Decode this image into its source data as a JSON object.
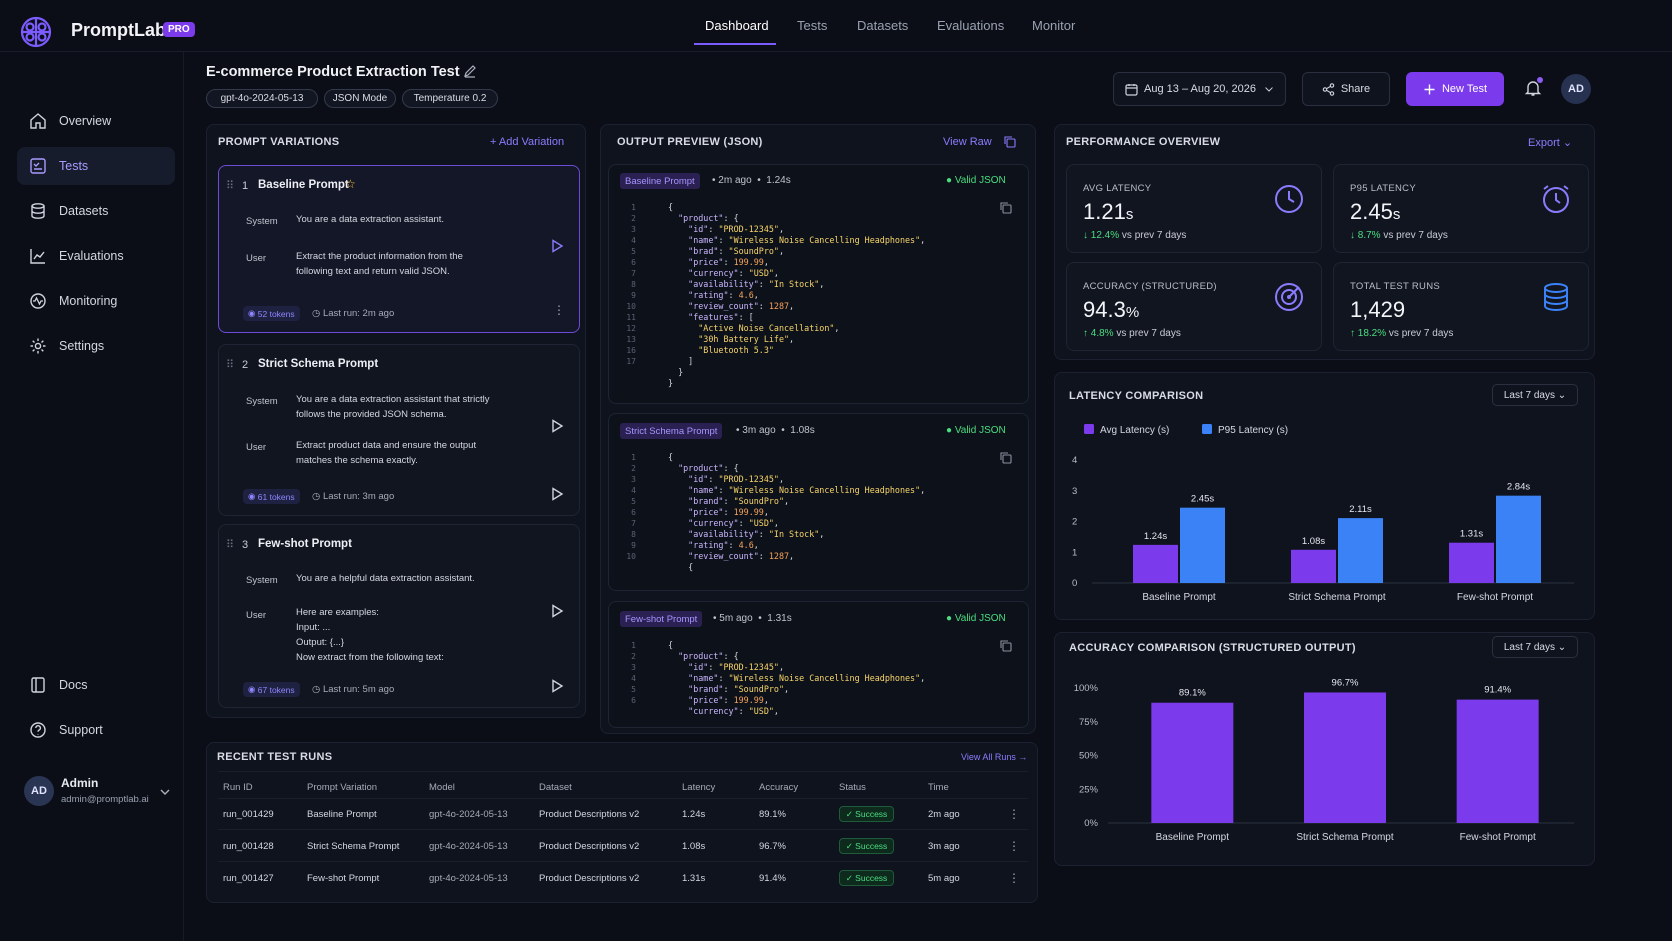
{
  "app": {
    "name": "PromptLab",
    "badge": "PRO"
  },
  "nav": {
    "tabs": [
      "Dashboard",
      "Tests",
      "Datasets",
      "Evaluations",
      "Monitor"
    ],
    "active": "Dashboard"
  },
  "sidebar": {
    "items": [
      {
        "label": "Overview",
        "icon": "home-icon"
      },
      {
        "label": "Tests",
        "icon": "tests-icon",
        "active": true
      },
      {
        "label": "Datasets",
        "icon": "database-icon"
      },
      {
        "label": "Evaluations",
        "icon": "chart-icon"
      },
      {
        "label": "Monitoring",
        "icon": "monitor-icon"
      },
      {
        "label": "Settings",
        "icon": "gear-icon"
      }
    ],
    "bottom": [
      {
        "label": "Docs",
        "icon": "book-icon"
      },
      {
        "label": "Support",
        "icon": "help-icon"
      }
    ],
    "user": {
      "initials": "AD",
      "name": "Admin",
      "email": "admin@promptlab.ai"
    }
  },
  "header": {
    "title": "E-commerce Product Extraction Test",
    "chips": [
      "gpt-4o-2024-05-13",
      "JSON Mode",
      "Temperature 0.2"
    ],
    "date_range": "Aug 13 – Aug 20, 2026",
    "share": "Share",
    "new_test": "New Test",
    "avatar": "AD"
  },
  "prompts": {
    "title": "PROMPT VARIATIONS",
    "add": "Add Variation",
    "items": [
      {
        "num": "1",
        "name": "Baseline Prompt",
        "system": "You are a data extraction assistant.",
        "user": [
          "Extract the product information from the",
          "following text and return valid JSON."
        ],
        "tokens": "52 tokens",
        "last_run": "Last run: 2m ago"
      },
      {
        "num": "2",
        "name": "Strict Schema Prompt",
        "system": [
          "You are a data extraction assistant that strictly",
          "follows the provided JSON schema."
        ],
        "user": [
          "Extract product data and ensure the output",
          "matches the schema exactly."
        ],
        "tokens": "61 tokens",
        "last_run": "Last run: 3m ago"
      },
      {
        "num": "3",
        "name": "Few-shot Prompt",
        "system": "You are a helpful data extraction assistant.",
        "user": [
          "Here are examples:",
          "Input: ...",
          "Output: {...}",
          "Now extract from the following text:"
        ],
        "tokens": "67 tokens",
        "last_run": "Last run: 5m ago"
      }
    ],
    "system_label": "System",
    "user_label": "User"
  },
  "output": {
    "title": "OUTPUT PREVIEW (JSON)",
    "view_raw": "View Raw",
    "valid": "Valid JSON",
    "blocks": [
      {
        "tag": "Baseline Prompt",
        "ago": "2m ago",
        "time": "1.24s"
      },
      {
        "tag": "Strict Schema Prompt",
        "ago": "3m ago",
        "time": "1.08s"
      },
      {
        "tag": "Few-shot Prompt",
        "ago": "5m ago",
        "time": "1.31s"
      }
    ]
  },
  "performance": {
    "title": "PERFORMANCE OVERVIEW",
    "export": "Export",
    "metrics": [
      {
        "label": "AVG LATENCY",
        "value": "1.21",
        "unit": "s",
        "delta": "12.4%",
        "dir": "↓",
        "suffix": "vs prev 7 days"
      },
      {
        "label": "P95 LATENCY",
        "value": "2.45",
        "unit": "s",
        "delta": "8.7%",
        "dir": "↓",
        "suffix": "vs prev 7 days"
      },
      {
        "label": "ACCURACY (STRUCTURED)",
        "value": "94.3",
        "unit": "%",
        "delta": "4.8%",
        "dir": "↑",
        "suffix": "vs prev 7 days"
      },
      {
        "label": "TOTAL TEST RUNS",
        "value": "1,429",
        "unit": "",
        "delta": "18.2%",
        "dir": "↑",
        "suffix": "vs prev 7 days"
      }
    ]
  },
  "latency_chart": {
    "title": "LATENCY COMPARISON",
    "range": "Last 7 days"
  },
  "accuracy_chart": {
    "title": "ACCURACY COMPARISON (STRUCTURED OUTPUT)",
    "range": "Last 7 days"
  },
  "chart_data": [
    {
      "type": "bar",
      "title": "LATENCY COMPARISON",
      "categories": [
        "Baseline Prompt",
        "Strict Schema Prompt",
        "Few-shot Prompt"
      ],
      "series": [
        {
          "name": "Avg Latency (s)",
          "values": [
            1.24,
            1.08,
            1.31
          ],
          "labels": [
            "1.24s",
            "1.08s",
            "1.31s"
          ],
          "color": "#7c3aed"
        },
        {
          "name": "P95 Latency (s)",
          "values": [
            2.45,
            2.11,
            2.84
          ],
          "labels": [
            "2.45s",
            "2.11s",
            "2.84s"
          ],
          "color": "#3b82f6"
        }
      ],
      "ylim": [
        0,
        4
      ],
      "yticks": [
        "0",
        "1",
        "2",
        "3",
        "4"
      ],
      "legend": "top-left"
    },
    {
      "type": "bar",
      "title": "ACCURACY COMPARISON (STRUCTURED OUTPUT)",
      "categories": [
        "Baseline Prompt",
        "Strict Schema Prompt",
        "Few-shot Prompt"
      ],
      "series": [
        {
          "values": [
            89.1,
            96.7,
            91.4
          ],
          "labels": [
            "89.1%",
            "96.7%",
            "91.4%"
          ],
          "color": "#7c3aed"
        }
      ],
      "ylim": [
        0,
        100
      ],
      "yticks": [
        "0%",
        "25%",
        "50%",
        "75%",
        "100%"
      ]
    }
  ],
  "runs": {
    "title": "RECENT TEST RUNS",
    "view_all": "View All Runs →",
    "columns": [
      "Run ID",
      "Prompt Variation",
      "Model",
      "Dataset",
      "Latency",
      "Accuracy",
      "Status",
      "Time"
    ],
    "rows": [
      [
        "run_001429",
        "Baseline Prompt",
        "gpt-4o-2024-05-13",
        "Product Descriptions v2",
        "1.24s",
        "89.1%",
        "Success",
        "2m ago"
      ],
      [
        "run_001428",
        "Strict Schema Prompt",
        "gpt-4o-2024-05-13",
        "Product Descriptions v2",
        "1.08s",
        "96.7%",
        "Success",
        "3m ago"
      ],
      [
        "run_001427",
        "Few-shot Prompt",
        "gpt-4o-2024-05-13",
        "Product Descriptions v2",
        "1.31s",
        "91.4%",
        "Success",
        "5m ago"
      ]
    ]
  },
  "colors": {
    "accent": "#7c3aed",
    "blue": "#3b82f6",
    "success": "#4ade80",
    "bg": "#0b0e16"
  }
}
